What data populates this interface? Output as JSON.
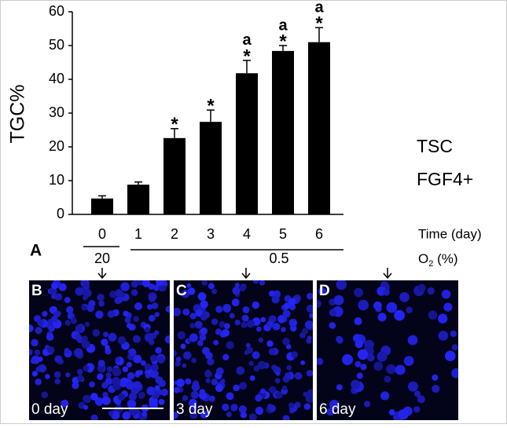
{
  "chart_data": {
    "type": "bar",
    "y_label": "TGC%",
    "categories": [
      "0",
      "1",
      "2",
      "3",
      "4",
      "5",
      "6"
    ],
    "values": [
      4.7,
      8.8,
      22.6,
      27.4,
      41.8,
      48.4,
      51.0
    ],
    "errors": [
      0.8,
      0.8,
      2.8,
      3.5,
      3.8,
      1.6,
      4.3
    ],
    "color": "#000000",
    "ylim": [
      0,
      60
    ],
    "yticks": [
      0,
      10,
      20,
      30,
      40,
      50,
      60
    ],
    "grid": false,
    "annotations": [
      {
        "category": "2",
        "labels": [
          "*"
        ]
      },
      {
        "category": "3",
        "labels": [
          "*"
        ]
      },
      {
        "category": "4",
        "labels": [
          "a",
          "*"
        ]
      },
      {
        "category": "5",
        "labels": [
          "a",
          "*"
        ]
      },
      {
        "category": "6",
        "labels": [
          "a",
          "*"
        ]
      }
    ],
    "side_labels": [
      "TSC",
      "FGF4+"
    ],
    "x_label": "Time (day)",
    "o2_groups": [
      "20",
      "0.5"
    ],
    "o2_label": [
      "O",
      "2",
      " (%)"
    ],
    "figure_label": "A"
  },
  "panels": [
    {
      "letter": "B",
      "caption": "0 day"
    },
    {
      "letter": "C",
      "caption": "3 day"
    },
    {
      "letter": "D",
      "caption": "6 day"
    }
  ]
}
